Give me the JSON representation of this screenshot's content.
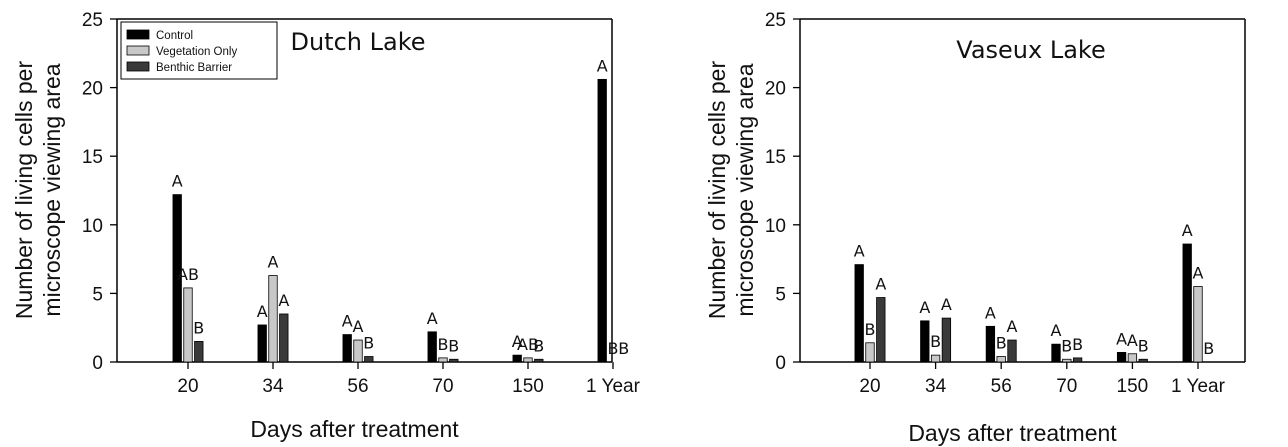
{
  "colors": {
    "control": "#000000",
    "vegetation_only": "#c8c8c8",
    "benthic_barrier": "#3a3a3a",
    "axis": "#000000"
  },
  "chart_data": [
    {
      "type": "bar",
      "title": "Dutch Lake",
      "xlabel": "Days after treatment",
      "ylabel": [
        "Number of living cells per",
        "microscope viewing area"
      ],
      "ylim": [
        0,
        25
      ],
      "yticks": [
        0,
        5,
        10,
        15,
        20,
        25
      ],
      "categories": [
        "20",
        "34",
        "56",
        "70",
        "150",
        "1 Year"
      ],
      "legend": {
        "placement": "top-left",
        "entries": [
          "Control",
          "Vegetation Only",
          "Benthic Barrier"
        ]
      },
      "series": [
        {
          "name": "Control",
          "values": [
            12.2,
            2.7,
            2.0,
            2.2,
            0.5,
            20.6
          ],
          "labels": [
            "A",
            "A",
            "A",
            "A",
            "A",
            "A"
          ]
        },
        {
          "name": "Vegetation Only",
          "values": [
            5.4,
            6.3,
            1.6,
            0.3,
            0.3,
            0
          ],
          "labels": [
            "AB",
            "A",
            "A",
            "B",
            "AB",
            "B"
          ]
        },
        {
          "name": "Benthic Barrier",
          "values": [
            1.5,
            3.5,
            0.4,
            0.2,
            0.2,
            0
          ],
          "labels": [
            "B",
            "A",
            "B",
            "B",
            "B",
            "B"
          ]
        }
      ],
      "grid": false
    },
    {
      "type": "bar",
      "title": "Vaseux Lake",
      "xlabel": "Days after treatment",
      "ylabel": [
        "Number of living cells per",
        "microscope viewing area"
      ],
      "ylim": [
        0,
        25
      ],
      "yticks": [
        0,
        5,
        10,
        15,
        20,
        25
      ],
      "categories": [
        "20",
        "34",
        "56",
        "70",
        "150",
        "1 Year"
      ],
      "series": [
        {
          "name": "Control",
          "values": [
            7.1,
            3.0,
            2.6,
            1.3,
            0.7,
            8.6
          ],
          "labels": [
            "A",
            "A",
            "A",
            "A",
            "A",
            "A"
          ]
        },
        {
          "name": "Vegetation Only",
          "values": [
            1.4,
            0.5,
            0.4,
            0.2,
            0.6,
            5.5
          ],
          "labels": [
            "B",
            "B",
            "B",
            "B",
            "A",
            "A"
          ]
        },
        {
          "name": "Benthic Barrier",
          "values": [
            4.7,
            3.2,
            1.6,
            0.3,
            0.2,
            0
          ],
          "labels": [
            "A",
            "A",
            "A",
            "B",
            "B",
            "B"
          ]
        }
      ],
      "grid": false
    }
  ]
}
